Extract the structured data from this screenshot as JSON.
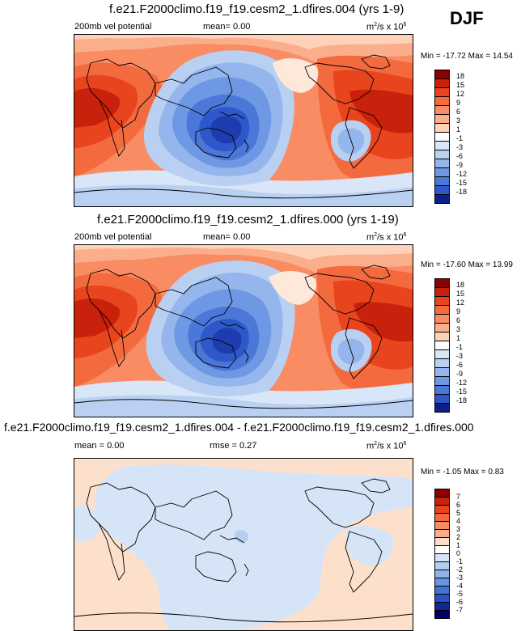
{
  "season": "DJF",
  "colors": {
    "vel_scale": [
      "#8b0000",
      "#c9210c",
      "#e8451e",
      "#f46a3f",
      "#f98c63",
      "#fbae8c",
      "#fdd2b9",
      "#fde8da",
      "#ffffff",
      "#d8e6f8",
      "#b9d0f2",
      "#94b6ec",
      "#6e98e3",
      "#4a77d8",
      "#2e58c9",
      "#1d3cb0",
      "#0c1f8c",
      "#00006b"
    ],
    "diff_scale": [
      "#8b0000",
      "#c9210c",
      "#e8451e",
      "#f46a3f",
      "#f98c63",
      "#fbae8c",
      "#fde0cc",
      "#ffffff",
      "#d6e4f7",
      "#b5cdf1",
      "#8fb2ea",
      "#6a94e1",
      "#4572d5",
      "#2a52c4",
      "#12288f"
    ]
  },
  "chart_data": [
    {
      "type": "heatmap",
      "title": "f.e21.F2000climo.f19_f19.cesm2_1.dfires.004 (yrs 1-9)",
      "subtitle_left": "200mb vel potential",
      "mean_label": "mean=",
      "mean_value": "0.00",
      "units": "m²/s x 10⁶",
      "min_max_label": "Min = -17.72 Max = 14.54",
      "colorbar_levels": [
        "18",
        "15",
        "12",
        "9",
        "6",
        "3",
        "1",
        "-1",
        "-3",
        "-6",
        "-9",
        "-12",
        "-15",
        "-18"
      ],
      "min": -17.72,
      "max": 14.54
    },
    {
      "type": "heatmap",
      "title": "f.e21.F2000climo.f19_f19.cesm2_1.dfires.000 (yrs 1-19)",
      "subtitle_left": "200mb vel potential",
      "mean_label": "mean=",
      "mean_value": "0.00",
      "units": "m²/s x 10⁶",
      "min_max_label": "Min = -17.60 Max = 13.99",
      "colorbar_levels": [
        "18",
        "15",
        "12",
        "9",
        "6",
        "3",
        "1",
        "-1",
        "-3",
        "-6",
        "-9",
        "-12",
        "-15",
        "-18"
      ],
      "min": -17.6,
      "max": 13.99
    },
    {
      "type": "heatmap",
      "title": "f.e21.F2000climo.f19_f19.cesm2_1.dfires.004 - f.e21.F2000climo.f19_f19.cesm2_1.dfires.000",
      "mean_label": "mean =",
      "mean_value": "0.00",
      "rmse_label": "rmse =",
      "rmse_value": "0.27",
      "units": "m²/s x 10⁶",
      "min_max_label": "Min = -1.05 Max = 0.83",
      "colorbar_levels": [
        "7",
        "6",
        "5",
        "4",
        "3",
        "2",
        "1",
        "0",
        "-1",
        "-2",
        "-3",
        "-4",
        "-5",
        "-6",
        "-7"
      ],
      "min": -1.05,
      "max": 0.83
    }
  ]
}
